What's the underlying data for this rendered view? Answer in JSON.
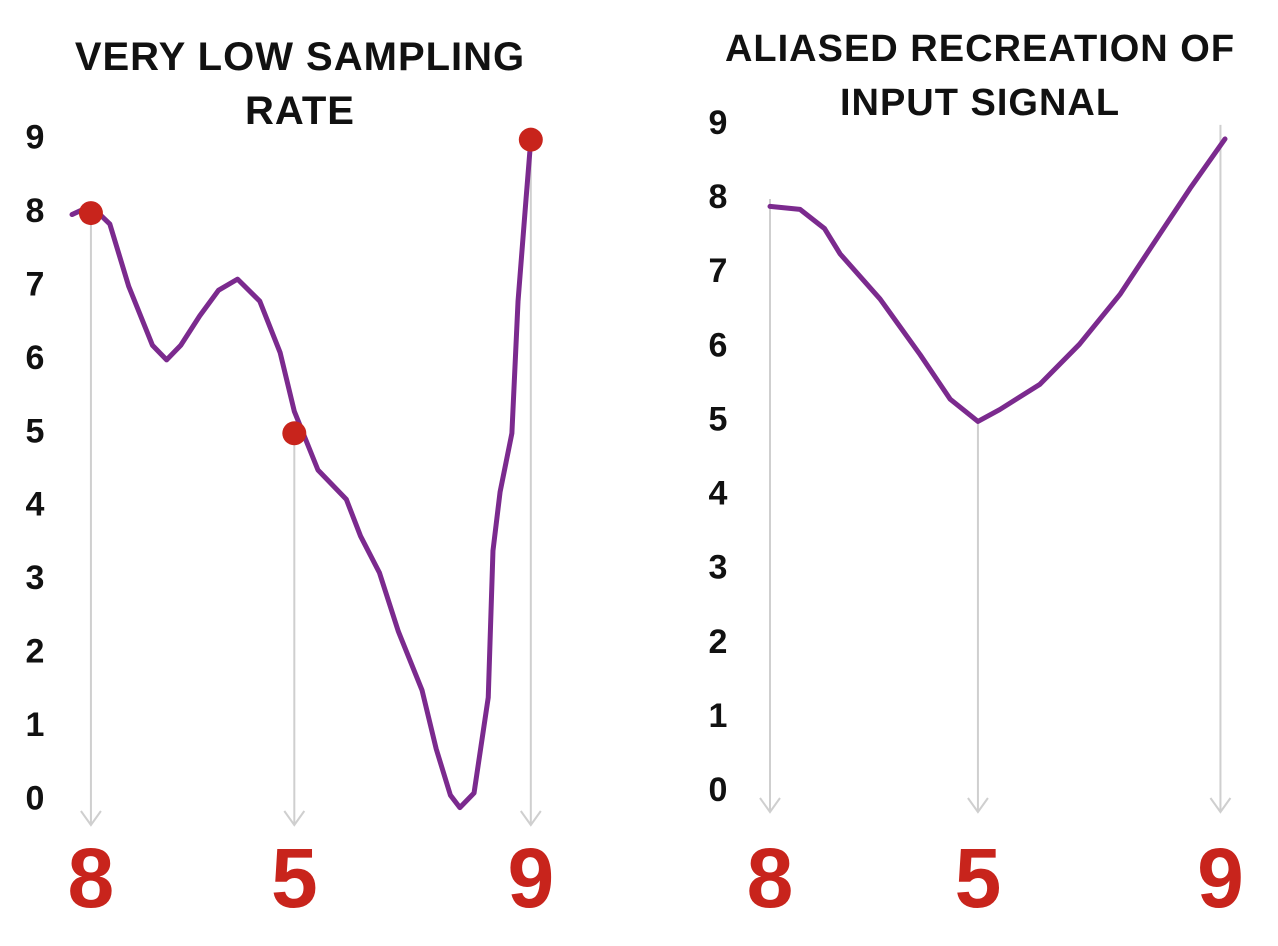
{
  "chart_data": [
    {
      "type": "line",
      "title": "VERY LOW SAMPLING RATE",
      "x": [
        0,
        0.4,
        0.8,
        1.2,
        1.7,
        2.0,
        2.3,
        2.7,
        3.1,
        3.5,
        3.97,
        4.4,
        4.7,
        5.2,
        5.8,
        6.1,
        6.5,
        6.9,
        7.4,
        7.7,
        8.0,
        8.2,
        8.5,
        8.8,
        8.9,
        9.05,
        9.3,
        9.43,
        9.6,
        9.7
      ],
      "values": [
        7.98,
        8.1,
        7.85,
        7.0,
        6.2,
        6.0,
        6.2,
        6.6,
        6.95,
        7.1,
        6.8,
        6.1,
        5.3,
        4.5,
        4.1,
        3.6,
        3.1,
        2.3,
        1.5,
        0.7,
        0.07,
        -0.1,
        0.1,
        1.4,
        3.4,
        4.2,
        5.0,
        6.8,
        8.2,
        9.0
      ],
      "color": "#7b2a8e",
      "samples": {
        "x": [
          0.4,
          4.7,
          9.7
        ],
        "values": [
          8,
          5,
          9
        ],
        "color": "#c8241c",
        "markers": true
      },
      "xlim": [
        0,
        10
      ],
      "ylim": [
        -0.2,
        9.2
      ],
      "yticks": [
        0,
        1,
        2,
        3,
        4,
        5,
        6,
        7,
        8,
        9
      ]
    },
    {
      "type": "line",
      "title": "ALIASED RECREATION OF INPUT SIGNAL",
      "x": [
        0,
        0.66,
        1.2,
        1.54,
        2.42,
        3.3,
        3.96,
        4.57,
        5.05,
        5.93,
        6.8,
        7.7,
        8.57,
        9.23,
        10
      ],
      "values": [
        7.9,
        7.86,
        7.6,
        7.26,
        6.65,
        5.9,
        5.3,
        5.0,
        5.16,
        5.5,
        6.04,
        6.72,
        7.53,
        8.14,
        8.81
      ],
      "color": "#7b2a8e",
      "samples": {
        "x": [
          0,
          4.57,
          9.9
        ],
        "values": [
          8,
          5,
          9
        ],
        "color": "#c8241c",
        "markers": false
      },
      "xlim": [
        0,
        10
      ],
      "ylim": [
        -0.2,
        9.2
      ],
      "yticks": [
        0,
        1,
        2,
        3,
        4,
        5,
        6,
        7,
        8,
        9
      ]
    }
  ]
}
